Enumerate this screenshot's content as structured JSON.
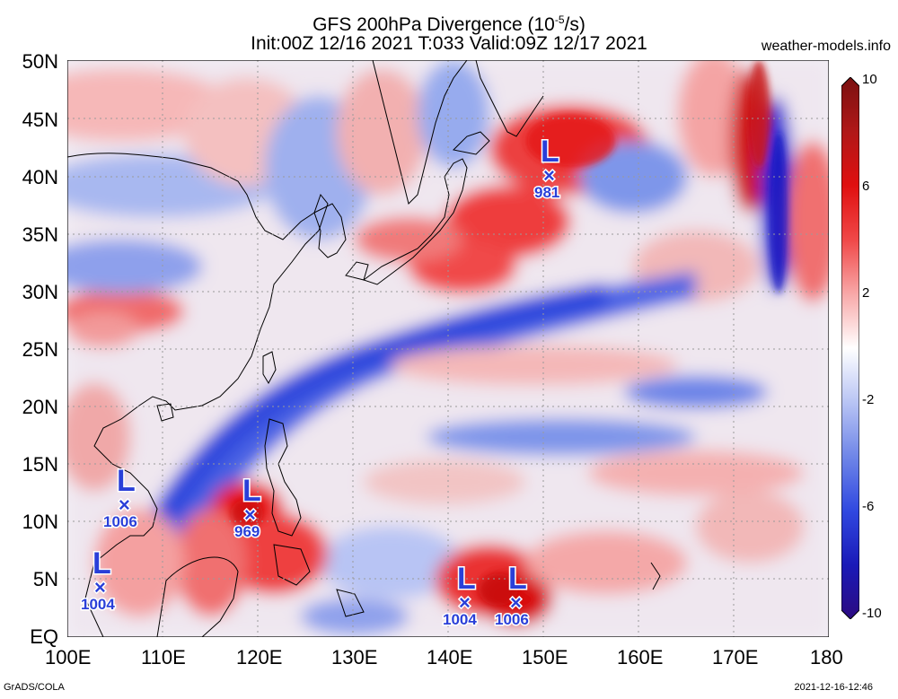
{
  "title": {
    "line1": "GFS 200hPa Divergence (10",
    "line1_sup": "-5",
    "line1_tail": "/s)",
    "line2": "Init:00Z 12/16 2021 T:033 Valid:09Z 12/17 2021"
  },
  "site": "weather-models.info",
  "credit": "GrADS/COLA",
  "timestamp": "2021-12-16-12:46",
  "lat_labels": [
    "50N",
    "45N",
    "40N",
    "35N",
    "30N",
    "25N",
    "20N",
    "15N",
    "10N",
    "5N",
    "EQ"
  ],
  "lon_labels": [
    "100E",
    "110E",
    "120E",
    "130E",
    "140E",
    "150E",
    "160E",
    "170E",
    "180"
  ],
  "colorbar": {
    "labels": [
      "10",
      "6",
      "2",
      "-2",
      "-6",
      "-10"
    ],
    "colors": [
      "#7a1010",
      "#b01818",
      "#e01010",
      "#f04848",
      "#f8a8a8",
      "#ffffff",
      "#b8c4f4",
      "#6f86e8",
      "#3048e0",
      "#1a1ab8",
      "#2c0a80"
    ]
  },
  "lows": [
    {
      "symbol": "L",
      "pressure": "981"
    },
    {
      "symbol": "L",
      "pressure": "1006"
    },
    {
      "symbol": "L",
      "pressure": "969"
    },
    {
      "symbol": "L",
      "pressure": "1004"
    },
    {
      "symbol": "L",
      "pressure": "1004"
    },
    {
      "symbol": "L",
      "pressure": "1006"
    }
  ]
}
